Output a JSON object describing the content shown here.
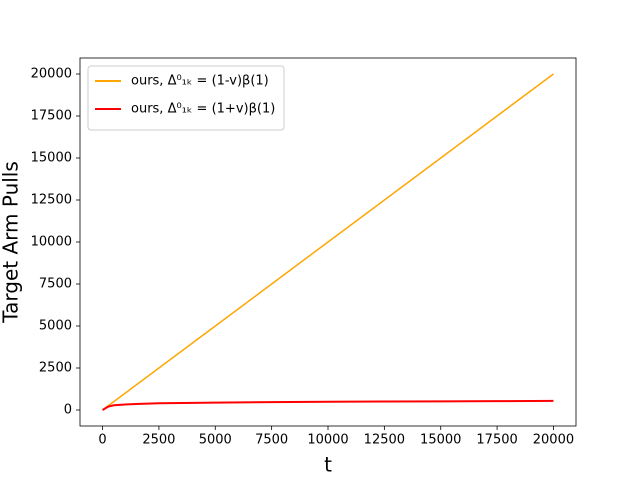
{
  "chart_data": {
    "type": "line",
    "xlabel": "t",
    "ylabel": "Target Arm Pulls",
    "xlim": [
      -1000,
      21000
    ],
    "ylim": [
      -952,
      20952
    ],
    "xticks": [
      0,
      2500,
      5000,
      7500,
      10000,
      12500,
      15000,
      17500,
      20000
    ],
    "yticks": [
      0,
      2500,
      5000,
      7500,
      10000,
      12500,
      15000,
      17500,
      20000
    ],
    "legend": "upper left",
    "series": [
      {
        "name": "ours, Δ⁰₁ₖ = (1-v)β(1)",
        "color": "#ffa500",
        "x": [
          0,
          20000
        ],
        "values": [
          0,
          20000
        ]
      },
      {
        "name": "ours, Δ⁰₁ₖ = (1+v)β(1)",
        "color": "#ff0000",
        "x": [
          0,
          250,
          500,
          1000,
          1500,
          2000,
          2500,
          5000,
          7500,
          10000,
          12500,
          15000,
          17500,
          20000
        ],
        "values": [
          0,
          200,
          280,
          330,
          360,
          380,
          400,
          440,
          470,
          490,
          505,
          515,
          525,
          540
        ]
      }
    ]
  }
}
